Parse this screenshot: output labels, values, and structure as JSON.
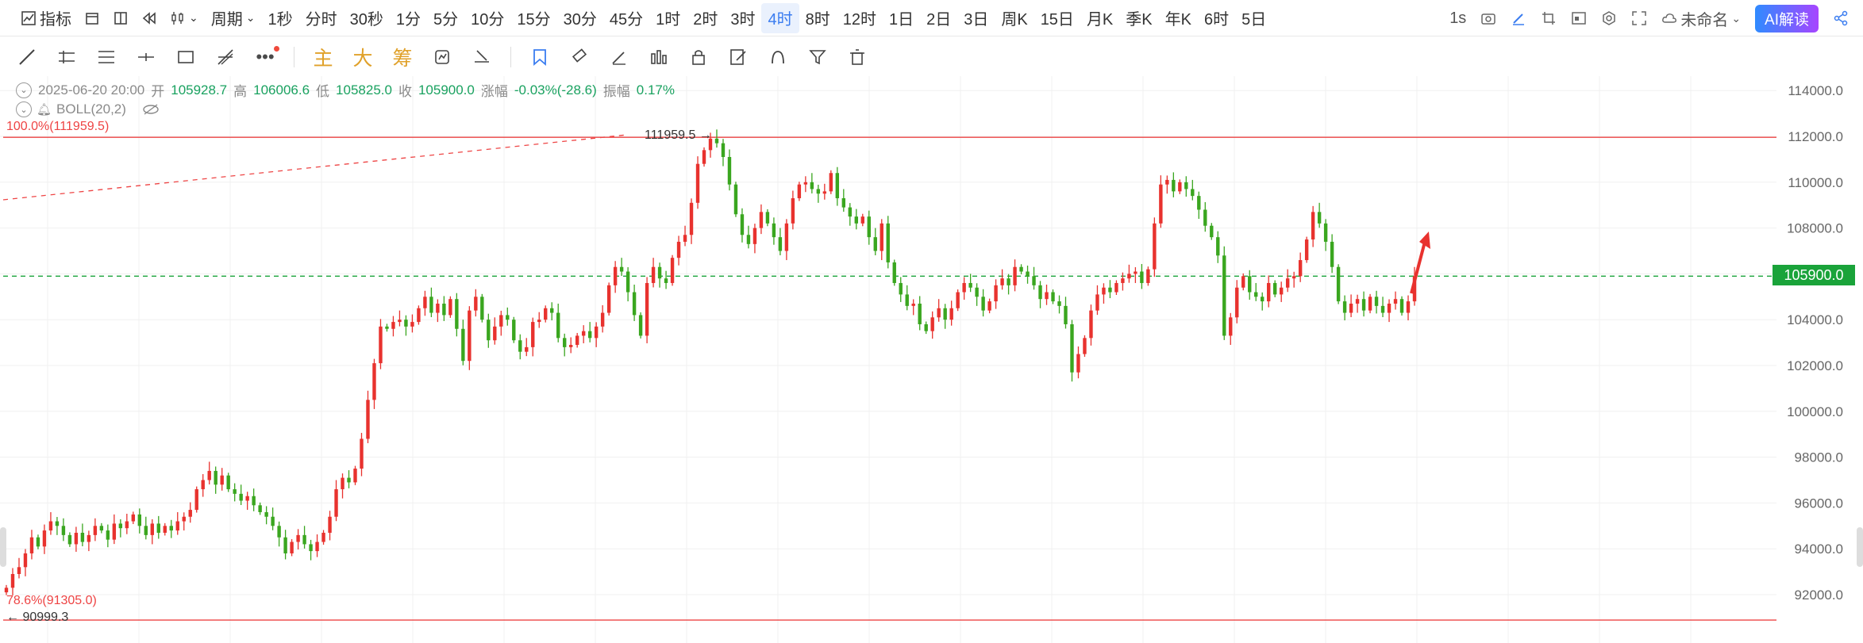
{
  "topbar": {
    "indicator_label": "指标",
    "period_label": "周期",
    "intervals": [
      "1秒",
      "分时",
      "30秒",
      "1分",
      "5分",
      "10分",
      "15分",
      "30分",
      "45分",
      "1时",
      "2时",
      "3时",
      "4时",
      "8时",
      "12时",
      "1日",
      "2日",
      "3日",
      "周K",
      "15日",
      "月K",
      "季K",
      "年K",
      "6时",
      "5日"
    ],
    "active_interval": "4时",
    "refresh_label": "1s",
    "save_label": "未命名",
    "ai_label": "AI解读"
  },
  "toolbar2": {
    "text_tools": [
      "主",
      "大",
      "筹"
    ]
  },
  "info": {
    "datetime": "2025-06-20 20:00",
    "open_label": "开",
    "open": "105928.7",
    "high_label": "高",
    "high": "106006.6",
    "low_label": "低",
    "low": "105825.0",
    "close_label": "收",
    "close": "105900.0",
    "change_label": "涨幅",
    "change": "-0.03%(-28.6)",
    "amplitude_label": "振幅",
    "amplitude": "0.17%",
    "indicator": "BOLL(20,2)"
  },
  "colors": {
    "up": "#e8322e",
    "down": "#3aa61f",
    "grid": "#f0f0f0",
    "fib": "#ee4444",
    "current": "#1aa33a"
  },
  "chart_data": {
    "type": "candlestick",
    "interval": "4时",
    "ylim": [
      90700,
      114700
    ],
    "y_ticks": [
      92000,
      94000,
      96000,
      98000,
      100000,
      102000,
      104000,
      106000,
      108000,
      110000,
      112000,
      114000
    ],
    "y_tick_labels": [
      "92000.0",
      "94000.0",
      "96000.0",
      "98000.0",
      "100000.0",
      "102000.0",
      "104000.0",
      "106000.0",
      "108000.0",
      "110000.0",
      "112000.0",
      "114000.0"
    ],
    "current_price": 105900.0,
    "current_price_label": "105900.0",
    "fib_levels": [
      {
        "label": "100.0%(111959.5)",
        "price": 111959.5
      },
      {
        "label": "78.6%(91305.0)",
        "price": 91305.0
      }
    ],
    "high_marker": {
      "label": "111959.5",
      "price": 111959.5
    },
    "low_marker": {
      "label": "90999.3",
      "price": 90999.3
    },
    "candles_close_series": [
      92300,
      92900,
      93200,
      93800,
      94500,
      94100,
      94800,
      95200,
      95000,
      94600,
      94200,
      94700,
      94300,
      94600,
      95000,
      94800,
      94400,
      95100,
      94900,
      95200,
      95500,
      95000,
      94600,
      95100,
      94700,
      95000,
      94800,
      95200,
      95400,
      95700,
      96600,
      97000,
      97400,
      96800,
      97200,
      96600,
      96400,
      96100,
      96300,
      95900,
      95600,
      95400,
      95000,
      94500,
      93800,
      94300,
      94600,
      94200,
      93900,
      94300,
      94700,
      95400,
      96600,
      97100,
      96900,
      97500,
      98800,
      100500,
      102100,
      103700,
      103600,
      103900,
      104000,
      103700,
      103900,
      104500,
      105000,
      104300,
      104700,
      104200,
      104900,
      103600,
      102200,
      104400,
      105000,
      104000,
      103100,
      103700,
      104200,
      104000,
      103100,
      102600,
      102800,
      103900,
      104000,
      104500,
      104300,
      103200,
      102800,
      102900,
      103300,
      103500,
      103200,
      103700,
      104300,
      105500,
      106300,
      106100,
      105200,
      104200,
      103300,
      105600,
      106300,
      105800,
      105600,
      106700,
      107400,
      107700,
      109100,
      110800,
      111400,
      111900,
      111700,
      111100,
      109900,
      108600,
      107700,
      107300,
      108000,
      108700,
      108200,
      107600,
      107000,
      108200,
      109300,
      109900,
      110000,
      109700,
      109500,
      109600,
      110400,
      109300,
      108900,
      108500,
      108200,
      108500,
      107600,
      107000,
      108200,
      106500,
      105600,
      105100,
      104600,
      104700,
      103800,
      103500,
      104100,
      104500,
      104000,
      104500,
      105200,
      105600,
      105400,
      105000,
      104400,
      104800,
      105500,
      105800,
      105500,
      106300,
      106100,
      105900,
      105500,
      104900,
      105200,
      104800,
      104600,
      103800,
      101700,
      102500,
      103200,
      104400,
      105100,
      105400,
      105200,
      105600,
      105800,
      106000,
      106100,
      105600,
      106200,
      108200,
      109900,
      110100,
      109600,
      110000,
      109700,
      109400,
      108800,
      108100,
      107600,
      106800,
      103300,
      104100,
      105400,
      105900,
      105200,
      105000,
      104800,
      105600,
      105100,
      105400,
      105800,
      105900,
      106600,
      107500,
      108700,
      108200,
      107400,
      106300,
      104800,
      104300,
      104700,
      104900,
      104400,
      105000,
      104600,
      104300,
      104700,
      104900,
      104300,
      104800,
      105900
    ]
  }
}
